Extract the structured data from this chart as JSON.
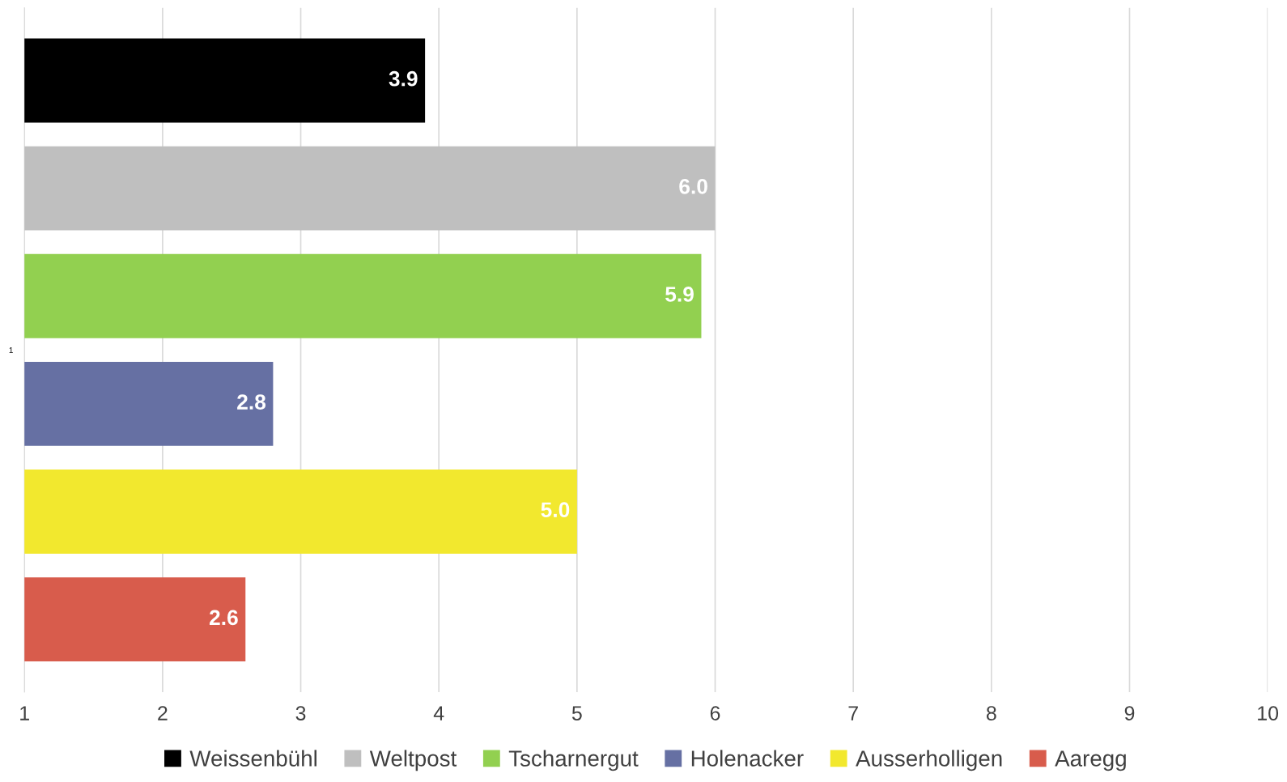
{
  "chart_data": {
    "type": "bar",
    "orientation": "horizontal",
    "categories": [
      "1"
    ],
    "series": [
      {
        "name": "Weissenbühl",
        "color": "#000000",
        "values": [
          3.9
        ],
        "value_labels": [
          "3.9"
        ]
      },
      {
        "name": "Weltpost",
        "color": "#bfbfbf",
        "values": [
          6.0
        ],
        "value_labels": [
          "6.0"
        ]
      },
      {
        "name": "Tscharnergut",
        "color": "#92d050",
        "values": [
          5.9
        ],
        "value_labels": [
          "5.9"
        ]
      },
      {
        "name": "Holenacker",
        "color": "#6670a3",
        "values": [
          2.8
        ],
        "value_labels": [
          "2.8"
        ]
      },
      {
        "name": "Ausserholligen",
        "color": "#f2e82e",
        "values": [
          5.0
        ],
        "value_labels": [
          "5.0"
        ]
      },
      {
        "name": "Aaregg",
        "color": "#d85c4c",
        "values": [
          2.6
        ],
        "value_labels": [
          "2.6"
        ]
      }
    ],
    "xlim": [
      1,
      10
    ],
    "xticks": [
      1,
      2,
      3,
      4,
      5,
      6,
      7,
      8,
      9,
      10
    ],
    "grid": "x",
    "legend": "bottom"
  }
}
